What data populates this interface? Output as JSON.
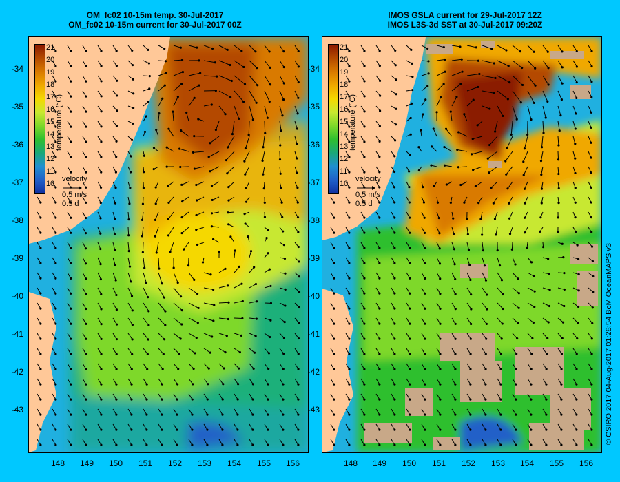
{
  "left_panel": {
    "title_line1": "OM_fc02 10-15m temp. 30-Jul-2017",
    "title_line2": "OM_fc02 10-15m current for 30-Jul-2017 00Z"
  },
  "right_panel": {
    "title_line1": "IMOS GSLA current for 29-Jul-2017 12Z",
    "title_line2": "IMOS L3S-3d SST at 30-Jul-2017 09:20Z"
  },
  "colorbar": {
    "ticks": [
      "21",
      "20",
      "19",
      "18",
      "17",
      "16",
      "15",
      "14",
      "13",
      "12",
      "11",
      "10"
    ],
    "label": "temperature (°C)",
    "colors": [
      "#8b1a00",
      "#b44a00",
      "#d97a00",
      "#f0a800",
      "#f5d800",
      "#c8e830",
      "#7ed82a",
      "#2fbf2f",
      "#1aa878",
      "#1f8fd0",
      "#2060c8",
      "#1030a0"
    ]
  },
  "velocity_legend": {
    "title": "velocity",
    "speed": "0.5 m/s",
    "duration": "0.5 d"
  },
  "y_axis": [
    "-34",
    "-35",
    "-36",
    "-37",
    "-38",
    "-39",
    "-40",
    "-41",
    "-42",
    "-43"
  ],
  "x_axis": [
    "148",
    "149",
    "150",
    "151",
    "152",
    "153",
    "154",
    "155",
    "156"
  ],
  "credit": "© CSIRO 2017   04-Aug-2017 01:28:54 BoM OceanMAPS v3",
  "colors": {
    "background": "#00c8ff",
    "land": "#ffc898",
    "missing_data": "#c8a888",
    "cold_water": "#20b0e0"
  }
}
